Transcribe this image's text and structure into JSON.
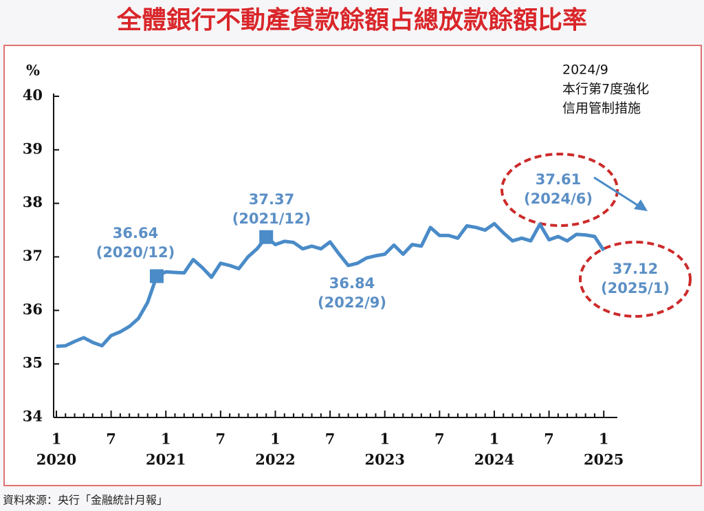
{
  "chart_data": {
    "type": "line",
    "title": "全體銀行不動產貸款餘額占總放款餘額比率",
    "y_unit": "%",
    "categories": [
      "1",
      null,
      null,
      null,
      null,
      null,
      "7",
      null,
      null,
      null,
      null,
      null,
      "1",
      null,
      null,
      null,
      null,
      null,
      "7",
      null,
      null,
      null,
      null,
      null,
      "1",
      null,
      null,
      null,
      null,
      null,
      "7",
      null,
      null,
      null,
      null,
      null,
      "1",
      null,
      null,
      null,
      null,
      null,
      "7",
      null,
      null,
      null,
      null,
      null,
      "1",
      null,
      null,
      null,
      null,
      null,
      "7",
      null,
      null,
      null,
      null,
      null,
      "1"
    ],
    "years": [
      "2020",
      "2021",
      "2022",
      "2023",
      "2024",
      "2025"
    ],
    "values": [
      35.33,
      35.34,
      35.42,
      35.49,
      35.4,
      35.34,
      35.53,
      35.6,
      35.7,
      35.85,
      36.15,
      36.64,
      36.72,
      36.71,
      36.7,
      36.95,
      36.8,
      36.62,
      36.88,
      36.84,
      36.78,
      37.0,
      37.15,
      37.37,
      37.23,
      37.29,
      37.27,
      37.15,
      37.2,
      37.15,
      37.28,
      37.05,
      36.84,
      36.88,
      36.98,
      37.02,
      37.05,
      37.22,
      37.05,
      37.23,
      37.2,
      37.55,
      37.4,
      37.4,
      37.35,
      37.58,
      37.55,
      37.5,
      37.62,
      37.45,
      37.3,
      37.35,
      37.3,
      37.61,
      37.32,
      37.38,
      37.3,
      37.42,
      37.41,
      37.38,
      37.12
    ],
    "color": "#4a8bc8",
    "ylim": [
      34,
      40
    ],
    "yticks": [
      34,
      35,
      36,
      37,
      38,
      39,
      40
    ],
    "grid": false,
    "annotations": [
      {
        "lines": [
          "36.64",
          "(2020/12)"
        ]
      },
      {
        "lines": [
          "37.37",
          "(2021/12)"
        ]
      },
      {
        "lines": [
          "36.84",
          "(2022/9)"
        ]
      },
      {
        "lines": [
          "37.61",
          "(2024/6)"
        ]
      },
      {
        "lines": [
          "37.12",
          "(2025/1)"
        ]
      }
    ],
    "note": [
      "2024/9",
      "本行第7度強化",
      "信用管制措施"
    ],
    "source": "資料來源：央行「金融統計月報」"
  }
}
